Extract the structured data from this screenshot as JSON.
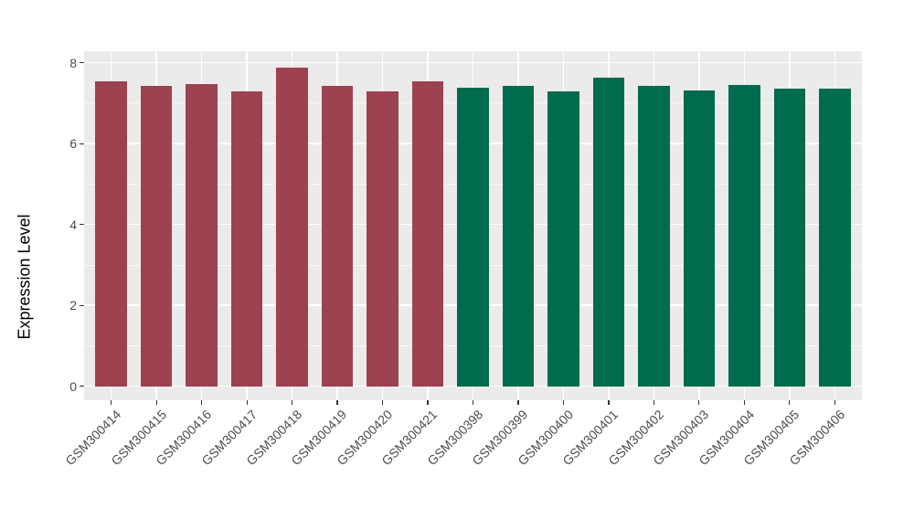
{
  "figure": {
    "background": "#FFFFFF",
    "panel_background": "#EBEBEB",
    "gridline_color": "#FFFFFF",
    "axis_text_color": "#4D4D4D",
    "axis_title_color": "#000000",
    "tick_mark_color": "#333333"
  },
  "chart_data": {
    "type": "bar",
    "title": "",
    "xlabel": "",
    "ylabel": "Expression Level",
    "ylim": [
      0,
      8.3
    ],
    "yticks": [
      0,
      2,
      4,
      6,
      8
    ],
    "yticks_minor": [
      1,
      3,
      5,
      7
    ],
    "grid": "white major and minor horizontal gridlines plus white vertical gridlines at each category center on gray panel",
    "legend_position": "none",
    "x_tick_rotation_deg": 45,
    "palette": {
      "maroon": "#9C4251",
      "green": "#006B4D"
    },
    "bars": [
      {
        "label": "GSM300414",
        "value": 7.55,
        "group": "maroon"
      },
      {
        "label": "GSM300415",
        "value": 7.43,
        "group": "maroon"
      },
      {
        "label": "GSM300416",
        "value": 7.48,
        "group": "maroon"
      },
      {
        "label": "GSM300417",
        "value": 7.28,
        "group": "maroon"
      },
      {
        "label": "GSM300418",
        "value": 7.88,
        "group": "maroon"
      },
      {
        "label": "GSM300419",
        "value": 7.43,
        "group": "maroon"
      },
      {
        "label": "GSM300420",
        "value": 7.28,
        "group": "maroon"
      },
      {
        "label": "GSM300421",
        "value": 7.55,
        "group": "maroon"
      },
      {
        "label": "GSM300398",
        "value": 7.38,
        "group": "green"
      },
      {
        "label": "GSM300399",
        "value": 7.43,
        "group": "green"
      },
      {
        "label": "GSM300400",
        "value": 7.3,
        "group": "green"
      },
      {
        "label": "GSM300401",
        "value": 7.63,
        "group": "green"
      },
      {
        "label": "GSM300402",
        "value": 7.43,
        "group": "green"
      },
      {
        "label": "GSM300403",
        "value": 7.31,
        "group": "green"
      },
      {
        "label": "GSM300404",
        "value": 7.44,
        "group": "green"
      },
      {
        "label": "GSM300405",
        "value": 7.37,
        "group": "green"
      },
      {
        "label": "GSM300406",
        "value": 7.35,
        "group": "green"
      }
    ]
  }
}
